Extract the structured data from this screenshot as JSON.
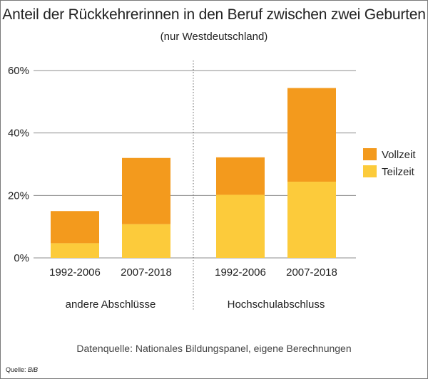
{
  "colors": {
    "vollzeit": "#f39a1d",
    "teilzeit": "#fccb3b",
    "grid": "#8c8c8c",
    "divider": "#666666"
  },
  "credit": {
    "label": "Quelle:",
    "source": "BiB"
  },
  "source_note": "Datenquelle: Nationales Bildungspanel, eigene Berechnungen",
  "chart_data": {
    "type": "bar",
    "stacked": true,
    "title": "Anteil der Rückkehrerinnen in den Beruf zwischen zwei Geburten",
    "subtitle": "(nur Westdeutschland)",
    "xlabel": "",
    "ylabel": "",
    "ylim": [
      0,
      60
    ],
    "yticks": [
      0,
      20,
      40,
      60
    ],
    "ytick_labels": [
      "0%",
      "20%",
      "40%",
      "60%"
    ],
    "grid": true,
    "groups": [
      "andere Abschlüsse",
      "Hochschulabschluss"
    ],
    "categories": [
      "1992-2006",
      "2007-2018",
      "1992-2006",
      "2007-2018"
    ],
    "category_group": [
      0,
      0,
      1,
      1
    ],
    "series": [
      {
        "name": "Teilzeit",
        "color": "#fccb3b",
        "values": [
          4.7,
          10.8,
          20.2,
          24.4
        ]
      },
      {
        "name": "Vollzeit",
        "color": "#f39a1d",
        "values": [
          10.3,
          21.2,
          12.0,
          30.0
        ]
      }
    ],
    "legend": {
      "position": "right",
      "items": [
        {
          "name": "Vollzeit",
          "color": "#f39a1d"
        },
        {
          "name": "Teilzeit",
          "color": "#fccb3b"
        }
      ]
    }
  }
}
